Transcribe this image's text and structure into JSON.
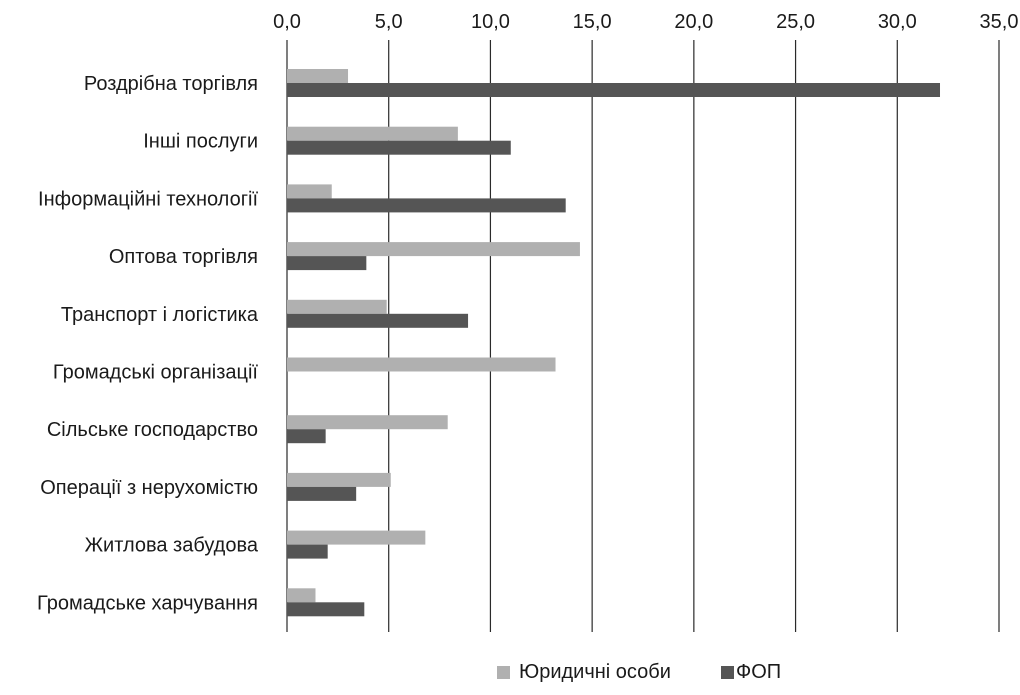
{
  "chart_data": {
    "type": "bar",
    "orientation": "horizontal",
    "categories": [
      "Роздрібна торгівля",
      "Інші послуги",
      "Інформаційні технології",
      "Оптова торгівля",
      "Транспорт і логістика",
      "Громадські організації",
      "Сільське господарство",
      "Операції з нерухомістю",
      "Житлова забудова",
      "Громадське харчування"
    ],
    "series": [
      {
        "name": "Юридичні особи",
        "color": "#b0b0b0",
        "values": [
          3.0,
          8.4,
          2.2,
          14.4,
          4.9,
          13.2,
          7.9,
          5.1,
          6.8,
          1.4
        ]
      },
      {
        "name": "ФОП",
        "color": "#555555",
        "values": [
          32.1,
          11.0,
          13.7,
          3.9,
          8.9,
          0.0,
          1.9,
          3.4,
          2.0,
          3.8
        ]
      }
    ],
    "xlim": [
      0,
      35
    ],
    "xticks": [
      "0,0",
      "5,0",
      "10,0",
      "15,0",
      "20,0",
      "25,0",
      "30,0",
      "35,0"
    ],
    "grid": "vertical",
    "legend_position": "bottom-right",
    "title": "",
    "xlabel": "",
    "ylabel": ""
  }
}
